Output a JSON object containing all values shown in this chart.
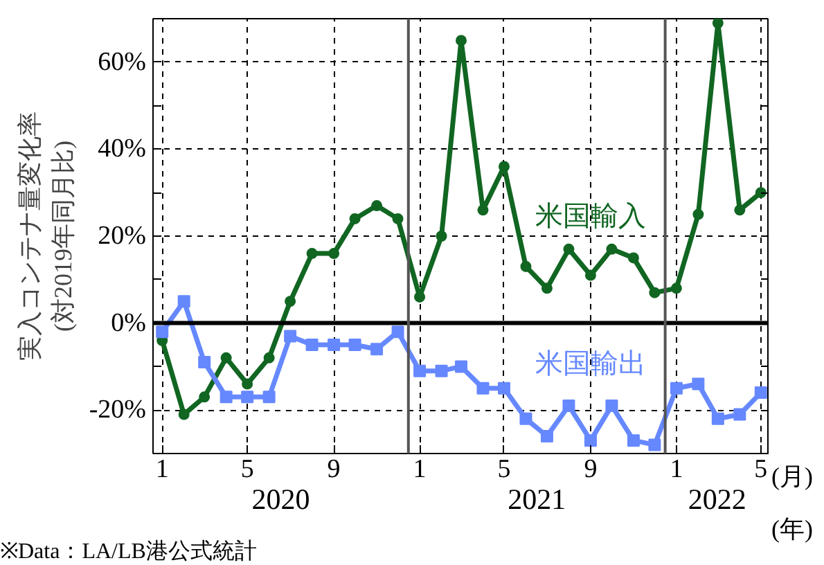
{
  "chart_data": {
    "type": "line",
    "ylabel": "実入コンテナ量変化率\n(対2019年同月比)",
    "x": [
      "2020-01",
      "2020-02",
      "2020-03",
      "2020-04",
      "2020-05",
      "2020-06",
      "2020-07",
      "2020-08",
      "2020-09",
      "2020-10",
      "2020-11",
      "2020-12",
      "2021-01",
      "2021-02",
      "2021-03",
      "2021-04",
      "2021-05",
      "2021-06",
      "2021-07",
      "2021-08",
      "2021-09",
      "2021-10",
      "2021-11",
      "2021-12",
      "2022-01",
      "2022-02",
      "2022-03",
      "2022-04",
      "2022-05"
    ],
    "series": [
      {
        "name": "米国輸入",
        "color": "#116622",
        "marker": "circle",
        "values": [
          -4,
          -21,
          -17,
          -8,
          -14,
          -8,
          5,
          16,
          16,
          24,
          27,
          24,
          6,
          20,
          65,
          26,
          36,
          13,
          8,
          17,
          11,
          17,
          15,
          7,
          8,
          25,
          69,
          26,
          30
        ]
      },
      {
        "name": "米国輸出",
        "color": "#6688ff",
        "marker": "square",
        "values": [
          -2,
          5,
          -9,
          -17,
          -17,
          -17,
          -3,
          -5,
          -5,
          -5,
          -6,
          -2,
          -11,
          -11,
          -10,
          -15,
          -15,
          -22,
          -26,
          -19,
          -27,
          -19,
          -27,
          -28,
          -15,
          -14,
          -22,
          -21,
          -16
        ]
      }
    ],
    "xlim": [
      "2019-12-19",
      "2022-05-13"
    ],
    "xticks": [
      {
        "value": "2020-01",
        "label": "1"
      },
      {
        "value": "2020-05",
        "label": "5"
      },
      {
        "value": "2020-09",
        "label": "9"
      },
      {
        "value": "2021-01",
        "label": "1"
      },
      {
        "value": "2021-05",
        "label": "5"
      },
      {
        "value": "2021-09",
        "label": "9"
      },
      {
        "value": "2022-01",
        "label": "1"
      },
      {
        "value": "2022-05",
        "label": "5"
      }
    ],
    "ylim": [
      -30,
      70
    ],
    "yticks": [
      {
        "value": -30,
        "label": null
      },
      {
        "value": -20,
        "label": "-20%"
      },
      {
        "value": -10,
        "label": null
      },
      {
        "value": 0,
        "label": "0%"
      },
      {
        "value": 10,
        "label": null
      },
      {
        "value": 20,
        "label": "20%"
      },
      {
        "value": 30,
        "label": null
      },
      {
        "value": 40,
        "label": "40%"
      },
      {
        "value": 50,
        "label": null
      },
      {
        "value": 60,
        "label": "60%"
      }
    ],
    "grid": true,
    "line_style": "solid",
    "ref_lines": [
      {
        "axis": "y",
        "value": 0,
        "label": null,
        "color": "#000000"
      },
      {
        "axis": "x",
        "value": "2020-12-16",
        "label": null,
        "color": "#555555"
      },
      {
        "axis": "x",
        "value": "2021-12-16",
        "label": null,
        "color": "#555555"
      }
    ],
    "annotations": [
      "2020",
      "2021",
      "2022",
      "(月)",
      "(年)",
      "※Data：LA/LB港公式統計"
    ]
  }
}
